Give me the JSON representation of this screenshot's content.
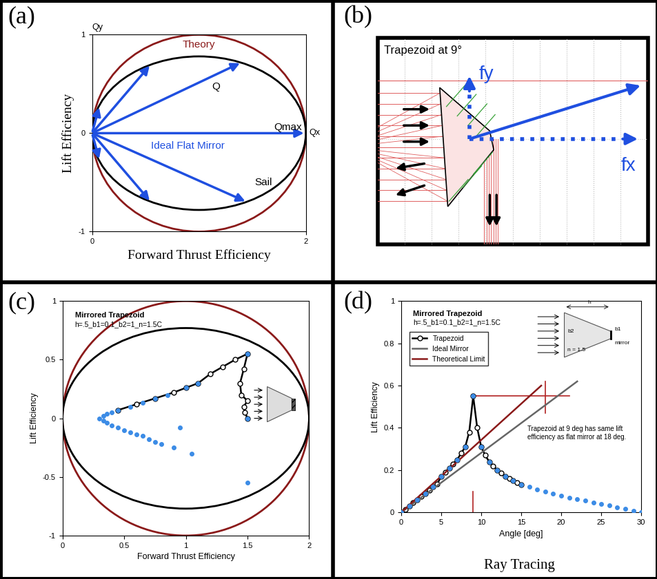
{
  "chart_data": [
    {
      "panel": "(a)",
      "type": "vector",
      "xlabel": "Forward Thrust Efficiency",
      "ylabel": "Lift Efficiency",
      "x_axis_name": "Qx",
      "y_axis_name": "Qy",
      "xlim": [
        0,
        2
      ],
      "ylim": [
        -1,
        1
      ],
      "xticks": [
        0,
        2
      ],
      "yticks": [
        -1,
        0,
        1
      ],
      "curves": [
        {
          "name": "Theory",
          "center": [
            1,
            0
          ],
          "width": 2,
          "height": 2,
          "color": "#8b1a1a"
        },
        {
          "name": "Sail",
          "center": [
            1,
            0
          ],
          "width": 2,
          "height": 1.56,
          "color": "#000000"
        }
      ],
      "vectors": {
        "color": "#1f4fe0",
        "values": [
          [
            0.07,
            0.28
          ],
          [
            0.55,
            0.7
          ],
          [
            1.4,
            0.72
          ],
          [
            2,
            0
          ],
          [
            1.45,
            -0.7
          ],
          [
            0.55,
            -0.7
          ],
          [
            0.07,
            -0.28
          ]
        ]
      },
      "annotations": [
        "Q",
        "Qmax",
        "Ideal Flat Mirror"
      ]
    },
    {
      "panel": "(c)",
      "type": "scatter",
      "title": "Mirrored Trapezoid",
      "subtitle": "h=.5_b1=0.1_b2=1_n=1.5C",
      "xlabel": "Forward Thrust Efficiency",
      "ylabel": "Lift Efficiency",
      "xlim": [
        0,
        2
      ],
      "ylim": [
        -1,
        1
      ],
      "xticks": [
        0,
        0.5,
        1,
        1.5,
        2
      ],
      "yticks": [
        -1,
        -0.5,
        0,
        0.5,
        1
      ],
      "curves": [
        {
          "center": [
            1,
            0
          ],
          "width": 2,
          "height": 2,
          "color": "#8b1a1a"
        },
        {
          "center": [
            1,
            0
          ],
          "width": 2,
          "height": 1.54,
          "color": "#000000"
        }
      ],
      "series": [
        {
          "type": "line",
          "color": "#000000",
          "marker": "o",
          "x": [
            0.45,
            0.6,
            0.75,
            0.9,
            1.0,
            1.1,
            1.2,
            1.3,
            1.4,
            1.5,
            1.47,
            1.44,
            1.45,
            1.5,
            1.47,
            1.48,
            1.5
          ],
          "values": [
            0.07,
            0.12,
            0.17,
            0.22,
            0.26,
            0.3,
            0.38,
            0.44,
            0.5,
            0.55,
            0.42,
            0.3,
            0.2,
            0.15,
            0.1,
            0.05,
            0.0
          ]
        },
        {
          "type": "scatter",
          "color": "#3c8ce6",
          "marker": "o",
          "x": [
            0.3,
            0.33,
            0.36,
            0.4,
            0.45,
            0.55,
            0.65,
            0.75,
            0.85,
            1.0,
            1.1,
            1.5,
            1.5,
            0.33,
            0.36,
            0.4,
            0.45,
            0.5,
            0.55,
            0.6,
            0.65,
            0.7,
            0.75,
            0.8,
            0.9,
            0.95,
            1.05,
            1.5
          ],
          "values": [
            0,
            0.02,
            0.04,
            0.05,
            0.07,
            0.1,
            0.13,
            0.17,
            0.2,
            0.26,
            0.3,
            0.55,
            0,
            -0.02,
            -0.04,
            -0.06,
            -0.08,
            -0.1,
            -0.12,
            -0.14,
            -0.15,
            -0.18,
            -0.2,
            -0.22,
            -0.25,
            -0.08,
            -0.3,
            -0.55
          ]
        }
      ]
    },
    {
      "panel": "(d)",
      "type": "line",
      "title": "Mirrored Trapezoid",
      "subtitle": "h=.5_b1=0.1_b2=1_n=1.5C",
      "xlabel": "Angle [deg]",
      "ylabel": "Lift Efficiency",
      "caption": "Ray Tracing",
      "xlim": [
        0,
        30
      ],
      "ylim": [
        0,
        1
      ],
      "xticks": [
        0,
        5,
        10,
        15,
        20,
        25,
        30
      ],
      "yticks": [
        0,
        0.2,
        0.4,
        0.6,
        0.8,
        1
      ],
      "legend": "upper left",
      "series": [
        {
          "name": "Trapezoid",
          "type": "line",
          "color": "#000000",
          "marker": "o",
          "x": [
            0,
            0.5,
            1,
            1.5,
            2,
            2.5,
            3,
            3.5,
            4,
            4.5,
            5,
            5.5,
            6,
            6.5,
            7,
            7.5,
            8,
            8.5,
            9,
            9.5,
            10,
            10.5,
            11,
            11.5,
            12,
            12.5,
            13,
            13.5,
            14,
            14.5,
            15
          ],
          "values": [
            0,
            0.015,
            0.03,
            0.045,
            0.06,
            0.075,
            0.09,
            0.105,
            0.12,
            0.135,
            0.17,
            0.19,
            0.21,
            0.23,
            0.25,
            0.28,
            0.31,
            0.38,
            0.55,
            0.4,
            0.31,
            0.27,
            0.24,
            0.22,
            0.2,
            0.185,
            0.17,
            0.16,
            0.15,
            0.14,
            0.13
          ]
        },
        {
          "name": "Ideal Mirror",
          "type": "line",
          "color": "#666666",
          "x": [
            0,
            22
          ],
          "values": [
            0,
            0.62
          ]
        },
        {
          "name": "Theoretical Limit",
          "type": "line",
          "color": "#8b1a1a",
          "x": [
            0,
            17.5
          ],
          "values": [
            0,
            0.6
          ]
        },
        {
          "type": "scatter",
          "color": "#3c8ce6",
          "marker": "o",
          "x": [
            0,
            1,
            2,
            3,
            4,
            5,
            6,
            7,
            8,
            9,
            10,
            11,
            12,
            13,
            14,
            15,
            16,
            17,
            18,
            19,
            20,
            21,
            22,
            23,
            24,
            25,
            26,
            27,
            28,
            29,
            30
          ],
          "values": [
            0,
            0.03,
            0.06,
            0.09,
            0.12,
            0.17,
            0.21,
            0.25,
            0.31,
            0.55,
            0.31,
            0.24,
            0.2,
            0.17,
            0.15,
            0.13,
            0.12,
            0.11,
            0.1,
            0.09,
            0.08,
            0.07,
            0.062,
            0.055,
            0.047,
            0.04,
            0.032,
            0.025,
            0.017,
            0.009,
            0
          ]
        }
      ],
      "guides": [
        {
          "color": "#b22222",
          "x": [
            9,
            21
          ],
          "values": [
            0.55,
            0.55
          ]
        },
        {
          "color": "#b22222",
          "x": [
            18,
            18
          ],
          "values": [
            0.47,
            0.62
          ]
        },
        {
          "color": "#b22222",
          "x": [
            9,
            9
          ],
          "values": [
            0,
            0.1
          ]
        }
      ],
      "annotations": [
        "Trapezoid at 9 deg has same lift\nefficiency as flat mirror at 18 deg."
      ],
      "inset": {
        "texts": [
          "h",
          "b2",
          "b1",
          "n = 1.5",
          "mirror"
        ]
      }
    }
  ],
  "diagram": {
    "panel": "(b)",
    "title": "Trapezoid at 9°",
    "labels": [
      "fy",
      "fx"
    ]
  }
}
